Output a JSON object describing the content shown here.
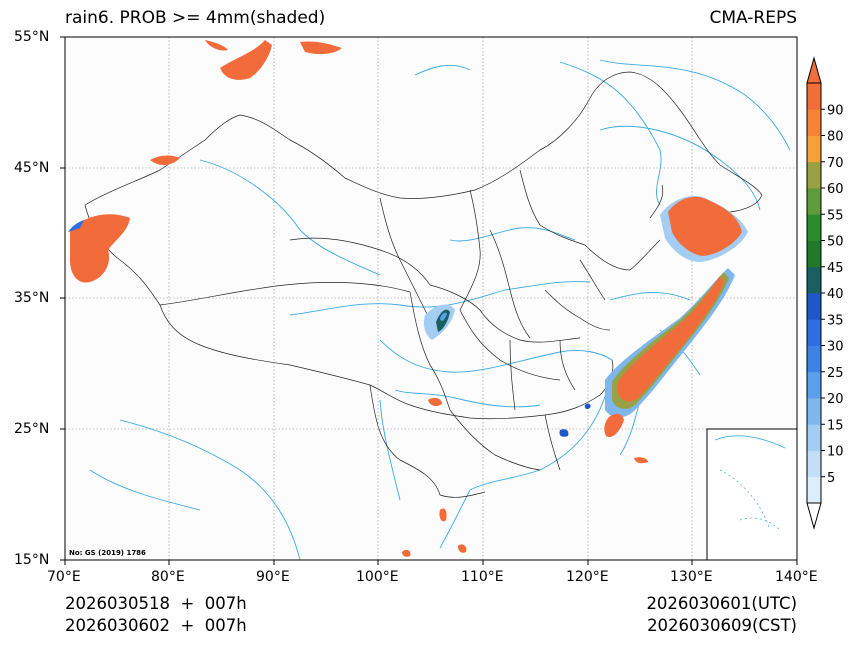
{
  "header": {
    "title_left": "rain6. PROB >= 4mm(shaded)",
    "title_right": "CMA-REPS"
  },
  "map": {
    "lat_labels": [
      "55°N",
      "45°N",
      "35°N",
      "25°N",
      "15°N"
    ],
    "lon_labels": [
      "70°E",
      "80°E",
      "90°E",
      "100°E",
      "110°E",
      "120°E",
      "130°E",
      "140°E"
    ],
    "credit": "No: GS (2019) 1786",
    "colors": {
      "land_bg": "#fcfcfc",
      "border": "#222222",
      "river": "#39a9e0",
      "grid": "#888888",
      "precip_high": "#f26b3a"
    }
  },
  "colorbar": {
    "labels": [
      "5",
      "10",
      "15",
      "20",
      "25",
      "30",
      "35",
      "40",
      "45",
      "50",
      "55",
      "60",
      "70",
      "80",
      "90"
    ],
    "colors": [
      "#ddeefb",
      "#c3dff7",
      "#a3cdf2",
      "#7eb6ee",
      "#5aa0ea",
      "#3d83e6",
      "#2e6ee0",
      "#1f56c8",
      "#1b6060",
      "#217a2a",
      "#2b8c2e",
      "#5f9a3c",
      "#99a045",
      "#f5a13a",
      "#f58236",
      "#ef6e3a"
    ]
  },
  "footer": {
    "init_time_utc": "2026030518  +  007h",
    "init_time_cst": "2026030602  +  007h",
    "valid_utc": "2026030601(UTC)",
    "valid_cst": "2026030609(CST)"
  }
}
